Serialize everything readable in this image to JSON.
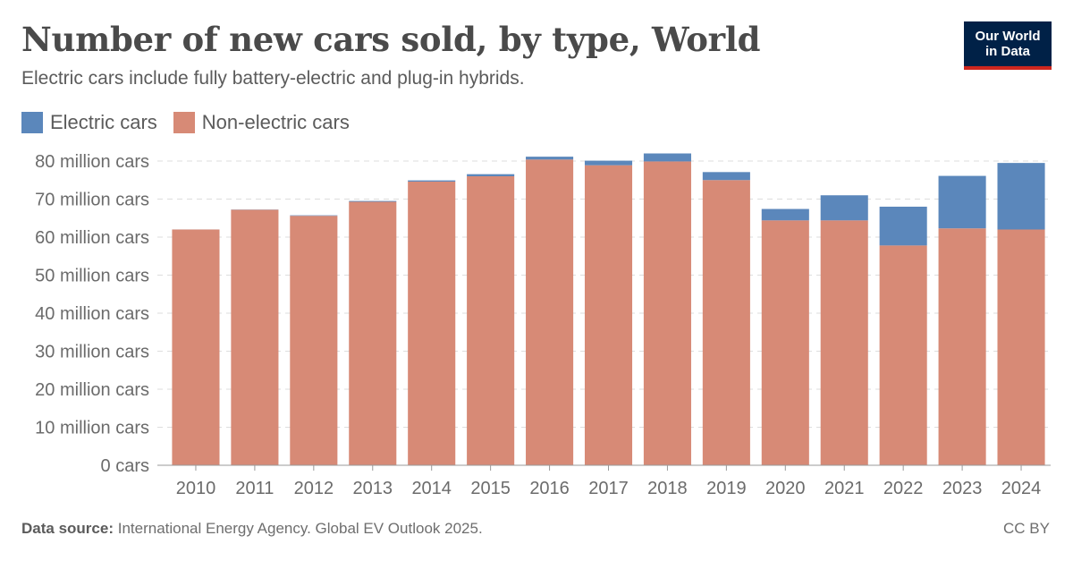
{
  "title": "Number of new cars sold, by type, World",
  "subtitle": "Electric cars include fully battery-electric and plug-in hybrids.",
  "logo": {
    "line1": "Our World",
    "line2": "in Data"
  },
  "footer": {
    "source_label": "Data source:",
    "source_text": "International Energy Agency. Global EV Outlook 2025.",
    "license": "CC BY"
  },
  "colors": {
    "electric": "#5b87bb",
    "nonelectric": "#d78a76",
    "logo_bg": "#002147",
    "logo_accent": "#ce261e"
  },
  "chart_data": {
    "type": "bar",
    "stacked": true,
    "title": "Number of new cars sold, by type, World",
    "xlabel": "",
    "ylabel": "",
    "categories": [
      "2010",
      "2011",
      "2012",
      "2013",
      "2014",
      "2015",
      "2016",
      "2017",
      "2018",
      "2019",
      "2020",
      "2021",
      "2022",
      "2023",
      "2024"
    ],
    "series": [
      {
        "name": "Non-electric cars",
        "color": "#d78a76",
        "values": [
          62.0,
          67.2,
          65.6,
          69.3,
          74.6,
          76.0,
          80.4,
          78.9,
          79.9,
          75.0,
          64.4,
          64.4,
          57.8,
          62.3,
          62.0
        ]
      },
      {
        "name": "Electric cars",
        "color": "#5b87bb",
        "values": [
          0.01,
          0.05,
          0.13,
          0.2,
          0.32,
          0.55,
          0.75,
          1.2,
          2.1,
          2.1,
          3.0,
          6.6,
          10.2,
          13.8,
          17.5
        ]
      }
    ],
    "legend_order": [
      "Electric cars",
      "Non-electric cars"
    ],
    "legend_position": "top-left",
    "ylim": [
      0,
      80
    ],
    "yticks": [
      0,
      10,
      20,
      30,
      40,
      50,
      60,
      70,
      80
    ],
    "ytick_labels": [
      "0 cars",
      "10 million cars",
      "20 million cars",
      "30 million cars",
      "40 million cars",
      "50 million cars",
      "60 million cars",
      "70 million cars",
      "80 million cars"
    ],
    "grid": true
  }
}
